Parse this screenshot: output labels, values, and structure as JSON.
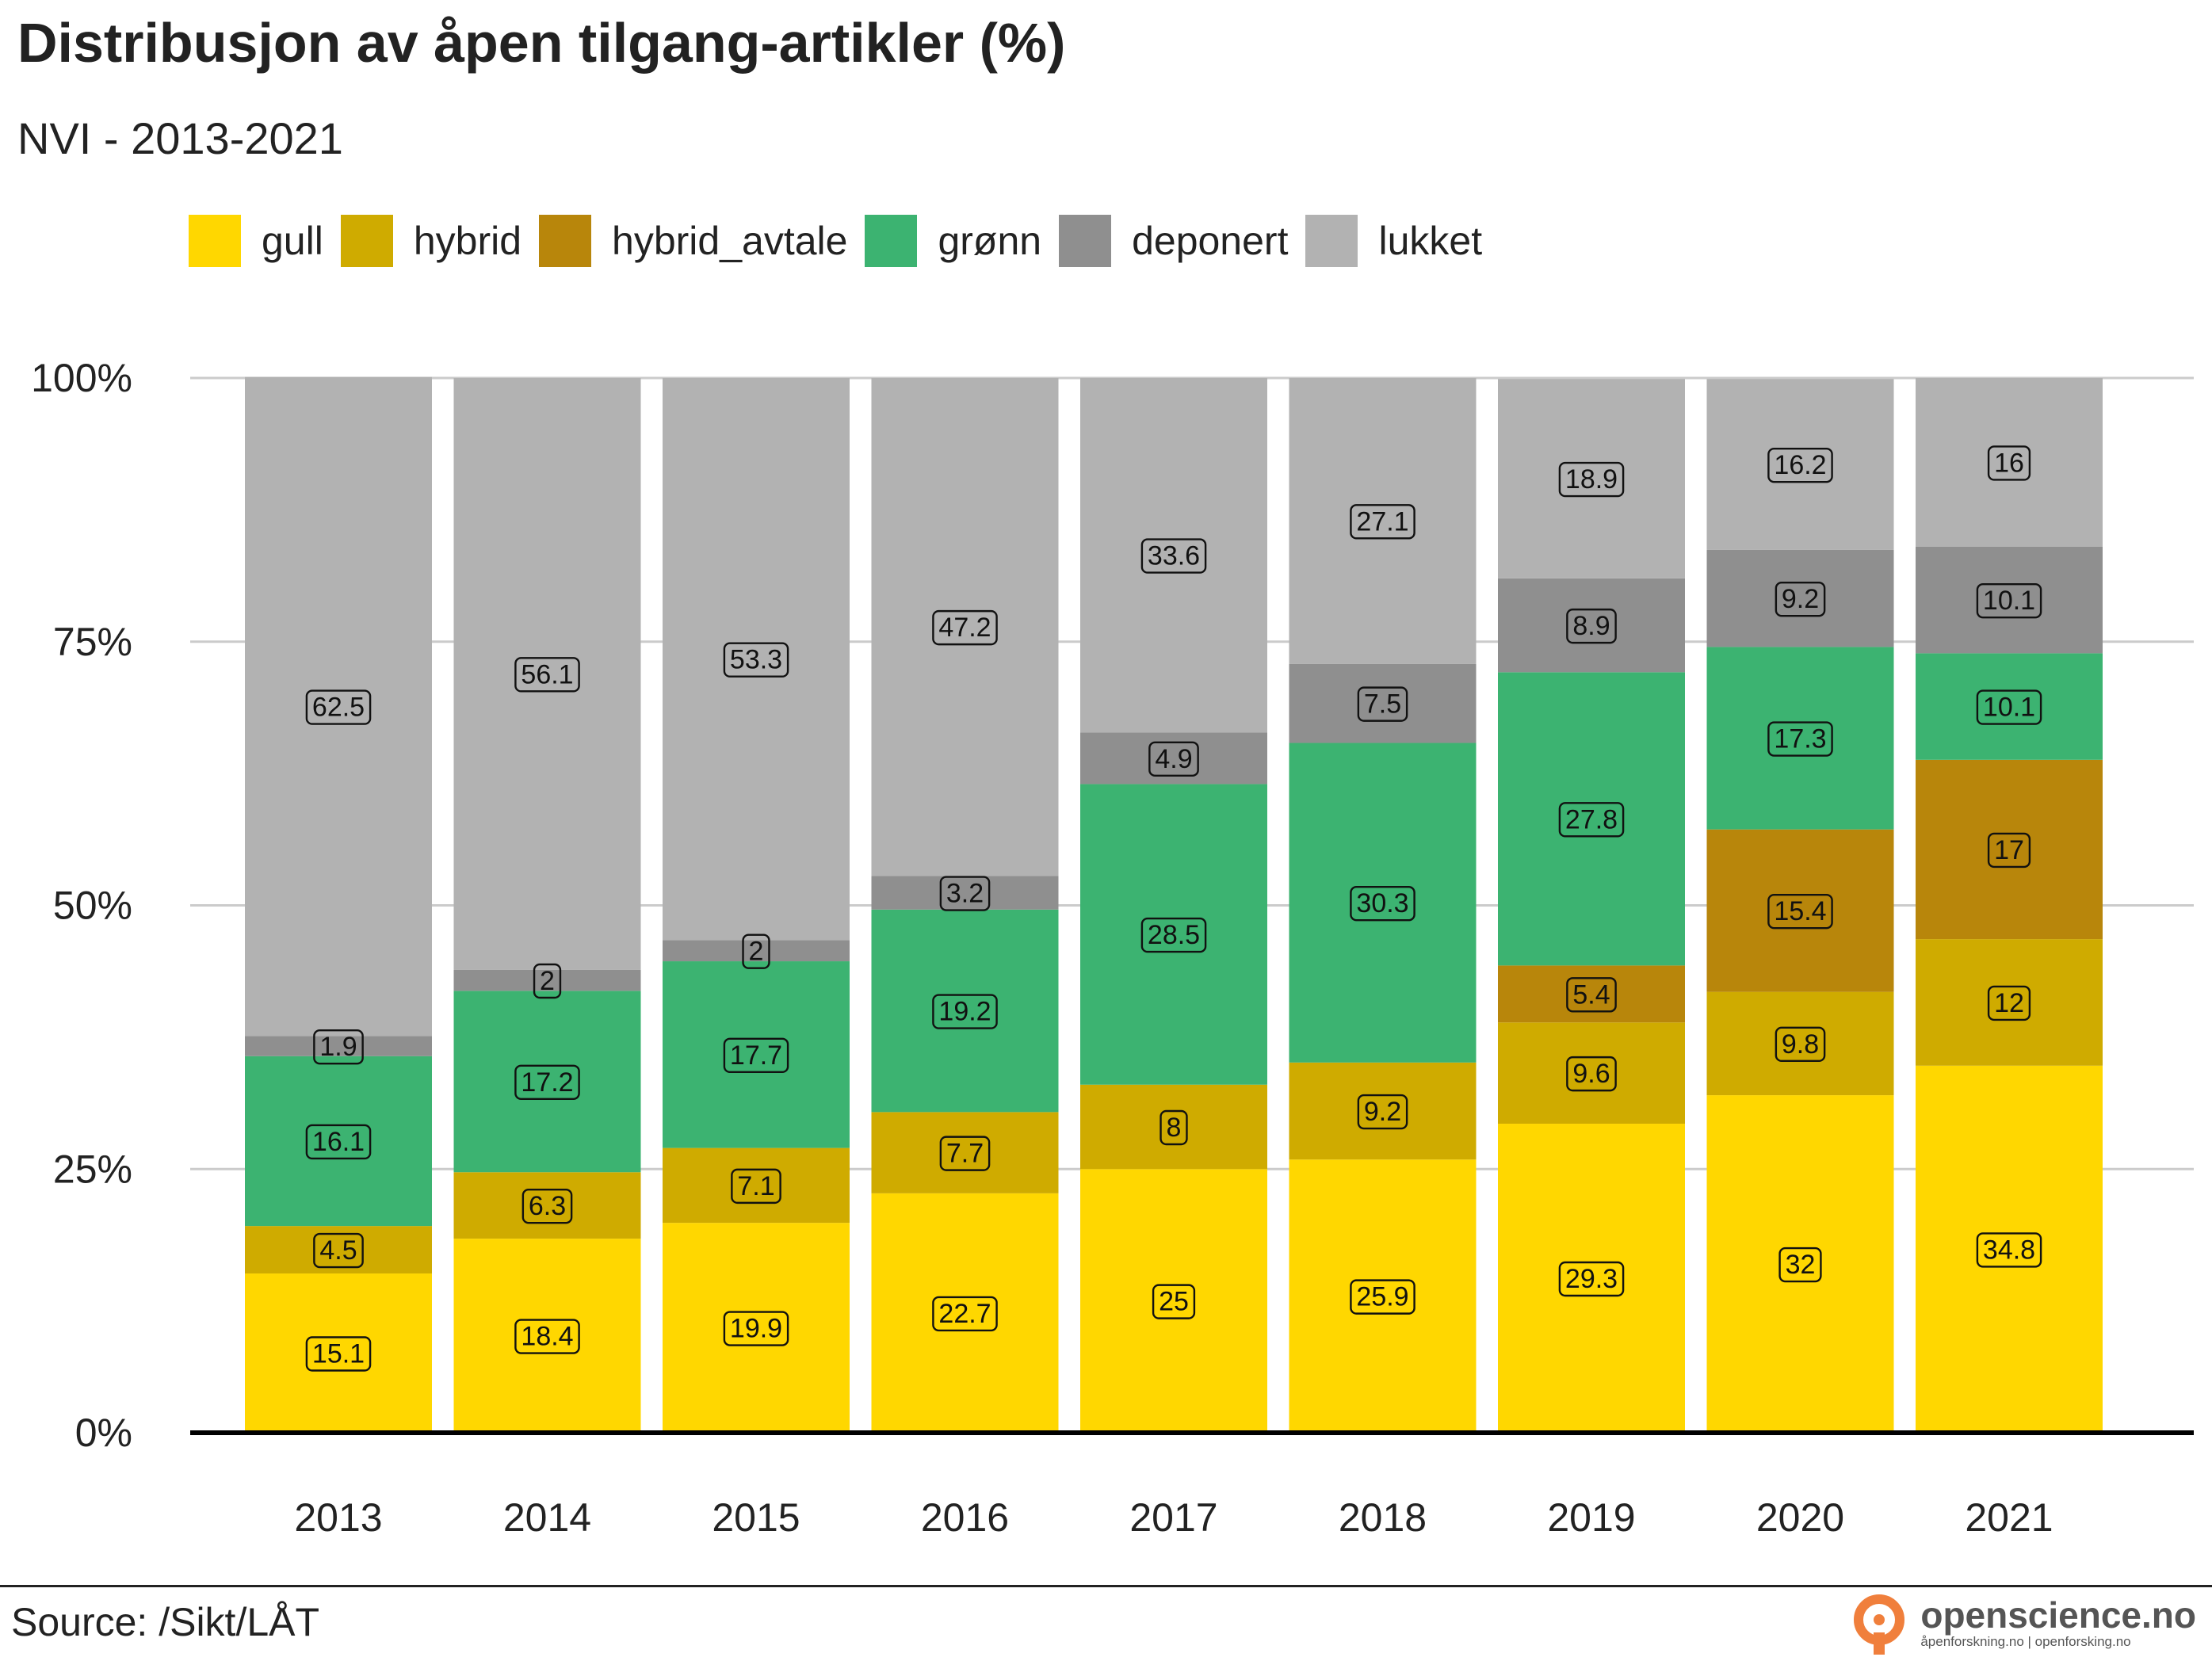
{
  "chart_data": {
    "type": "bar",
    "stacked": true,
    "title": "Distribusjon av åpen tilgang-artikler (%)",
    "subtitle": "NVI - 2013-2021",
    "categories": [
      "2013",
      "2014",
      "2015",
      "2016",
      "2017",
      "2018",
      "2019",
      "2020",
      "2021"
    ],
    "series": [
      {
        "name": "gull",
        "color": "#FFD700",
        "values": [
          15.1,
          18.4,
          19.9,
          22.7,
          25,
          25.9,
          29.3,
          32,
          34.8
        ]
      },
      {
        "name": "hybrid",
        "color": "#CFAB00",
        "values": [
          4.5,
          6.3,
          7.1,
          7.7,
          8,
          9.2,
          9.6,
          9.8,
          12
        ]
      },
      {
        "name": "hybrid_avtale",
        "color": "#B8860B",
        "values": [
          null,
          null,
          null,
          null,
          null,
          null,
          5.4,
          15.4,
          17
        ]
      },
      {
        "name": "grønn",
        "color": "#3CB371",
        "values": [
          16.1,
          17.2,
          17.7,
          19.2,
          28.5,
          30.3,
          27.8,
          17.3,
          10.1
        ]
      },
      {
        "name": "deponert",
        "color": "#8F8F8F",
        "values": [
          1.9,
          2,
          2,
          3.2,
          4.9,
          7.5,
          8.9,
          9.2,
          10.1
        ]
      },
      {
        "name": "lukket",
        "color": "#B2B2B2",
        "values": [
          62.5,
          56.1,
          53.3,
          47.2,
          33.6,
          27.1,
          18.9,
          16.2,
          16
        ]
      }
    ],
    "ylim": [
      0,
      100
    ],
    "yticks": [
      "0%",
      "25%",
      "50%",
      "75%",
      "100%"
    ],
    "grid": true,
    "legend_position": "top"
  },
  "footer": {
    "source": "Source: /Sikt/LÅT",
    "logo_text": "openscience.no",
    "logo_subtext": "åpenforskning.no | openforsking.no"
  }
}
